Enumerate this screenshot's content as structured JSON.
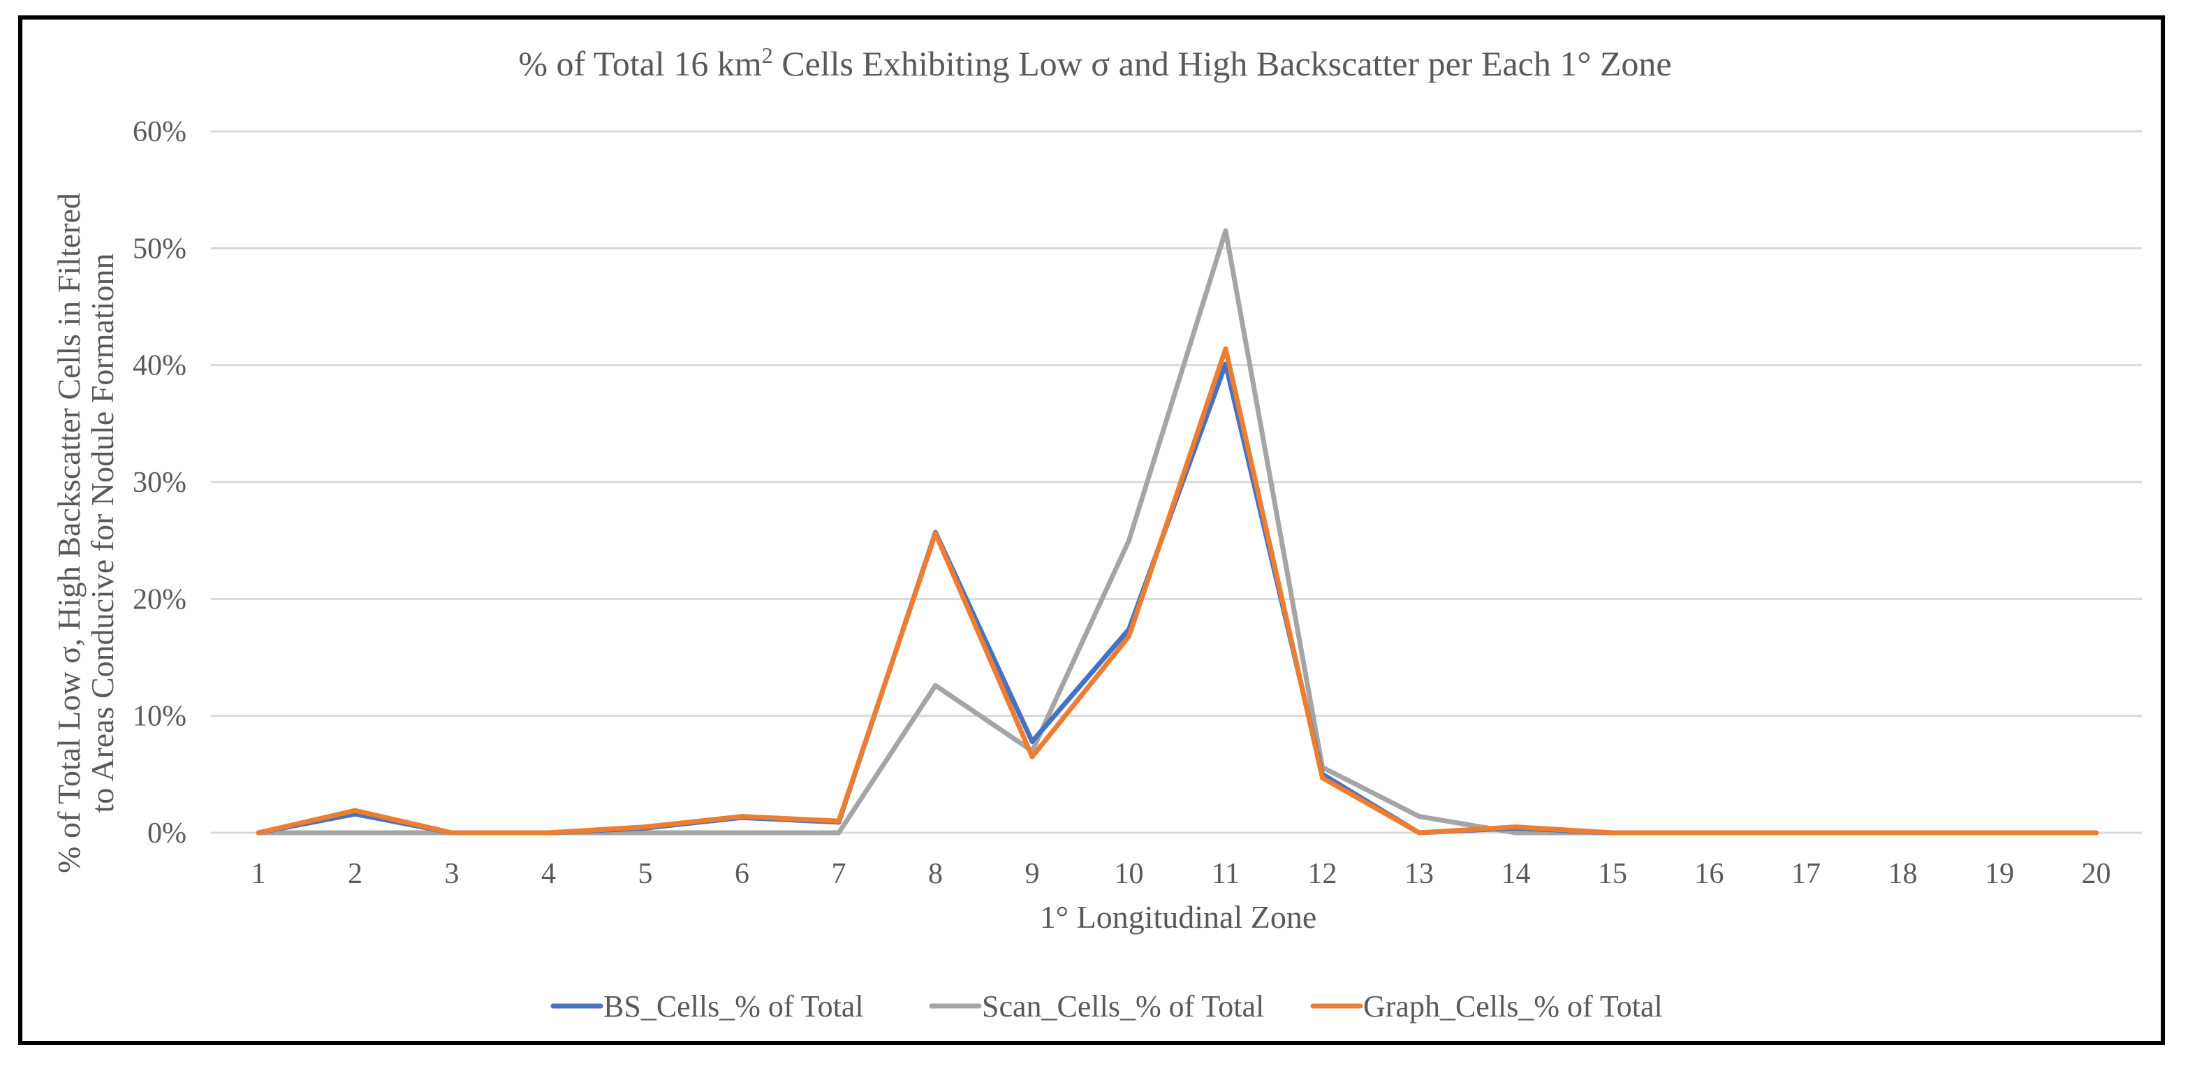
{
  "chart_data": {
    "type": "line",
    "title_parts": {
      "before_sup": "% of Total 16 km",
      "sup": "2",
      "after_sup": " Cells Exhibiting Low σ and High Backscatter per Each 1° Zone"
    },
    "ylabel_lines": [
      "% of Total Low σ, High Backscatter Cells in Filtered",
      "to Areas Conducive for Nodule Formationn"
    ],
    "xlabel": "1° Longitudinal Zone",
    "categories": [
      "1",
      "2",
      "3",
      "4",
      "5",
      "6",
      "7",
      "8",
      "9",
      "10",
      "11",
      "12",
      "13",
      "14",
      "15",
      "16",
      "17",
      "18",
      "19",
      "20"
    ],
    "yticks": [
      "0%",
      "10%",
      "20%",
      "30%",
      "40%",
      "50%",
      "60%"
    ],
    "ylim": [
      0,
      60
    ],
    "grid": true,
    "legend_position": "bottom",
    "series": [
      {
        "name": "BS_Cells_% of Total",
        "color": "#4472c4",
        "values": [
          0,
          1.6,
          0,
          0,
          0.4,
          1.3,
          0.9,
          25.7,
          7.8,
          17.4,
          40.1,
          5.0,
          0,
          0.4,
          0,
          0,
          0,
          0,
          0,
          0
        ]
      },
      {
        "name": "Scan_Cells_% of Total",
        "color": "#a5a5a5",
        "values": [
          0,
          0,
          0,
          0,
          0,
          0,
          0,
          12.6,
          7.0,
          25.0,
          51.5,
          5.6,
          1.4,
          0,
          0,
          0,
          0,
          0,
          0,
          0
        ]
      },
      {
        "name": "Graph_Cells_% of Total",
        "color": "#ed7d31",
        "values": [
          0,
          1.9,
          0,
          0,
          0.5,
          1.4,
          1.0,
          25.6,
          6.5,
          16.8,
          41.4,
          4.7,
          0,
          0.5,
          0,
          0,
          0,
          0,
          0,
          0
        ]
      }
    ]
  }
}
